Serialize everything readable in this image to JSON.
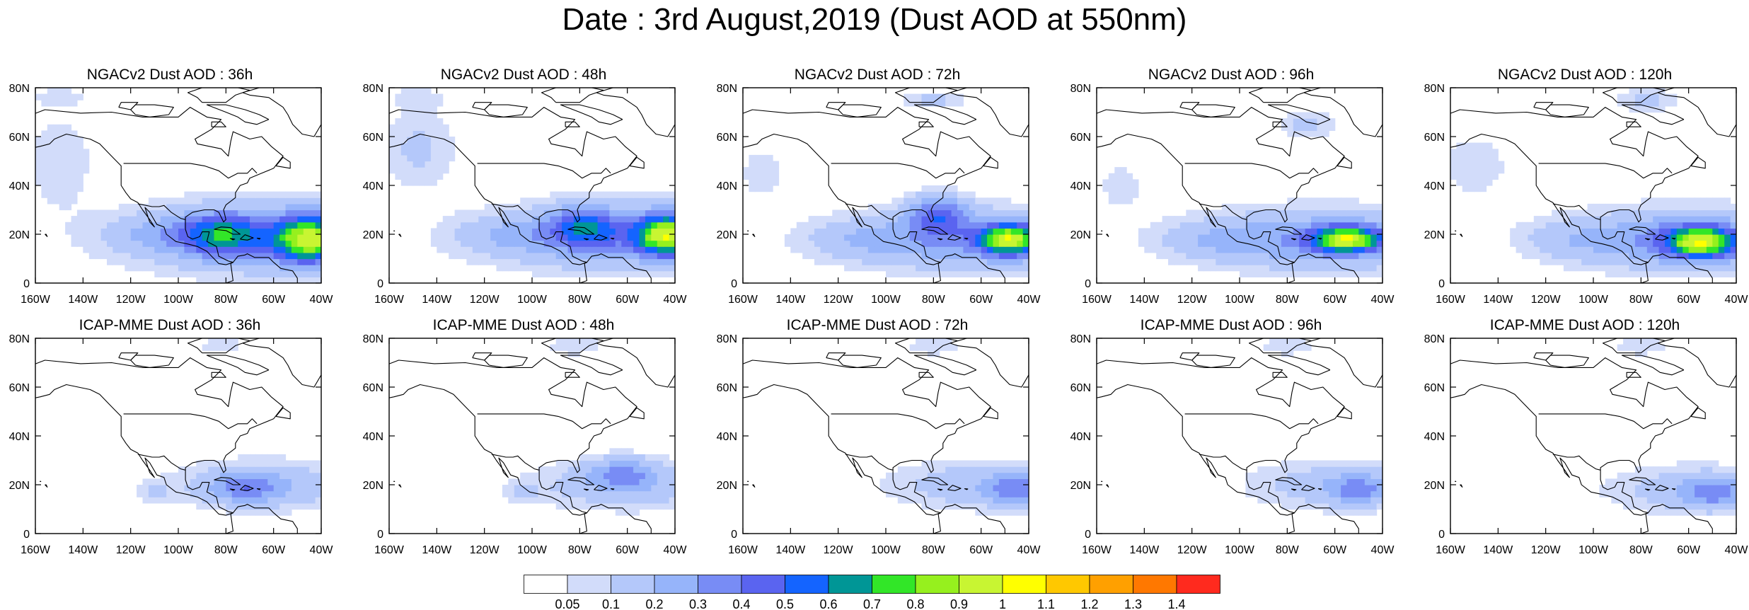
{
  "title": "Date : 3rd August,2019 (Dust AOD at 550nm)",
  "axes": {
    "lon_ticks": [
      "160W",
      "140W",
      "120W",
      "100W",
      "80W",
      "60W",
      "40W"
    ],
    "lat_ticks": [
      "0",
      "20N",
      "40N",
      "60N",
      "80N"
    ]
  },
  "panels": [
    {
      "row": 0,
      "col": 0,
      "title": "NGACv2 Dust AOD : 36h",
      "blobs": [
        [
          -60,
          19,
          60,
          14,
          0.32
        ],
        [
          -45,
          18,
          14,
          9,
          0.7
        ],
        [
          -82,
          20,
          16,
          8,
          0.45
        ],
        [
          -110,
          20,
          20,
          7,
          0.1
        ],
        [
          -150,
          50,
          14,
          18,
          0.1
        ],
        [
          -150,
          76,
          12,
          4,
          0.08
        ]
      ]
    },
    {
      "row": 0,
      "col": 1,
      "title": "NGACv2 Dust AOD : 48h",
      "blobs": [
        [
          -62,
          19,
          58,
          13,
          0.3
        ],
        [
          -44,
          20,
          12,
          8,
          0.75
        ],
        [
          -78,
          23,
          14,
          8,
          0.4
        ],
        [
          -110,
          20,
          20,
          7,
          0.1
        ],
        [
          -148,
          55,
          16,
          16,
          0.12
        ],
        [
          -148,
          76,
          12,
          4,
          0.08
        ]
      ]
    },
    {
      "row": 0,
      "col": 2,
      "title": "NGACv2 Dust AOD : 72h",
      "blobs": [
        [
          -65,
          18,
          55,
          12,
          0.3
        ],
        [
          -48,
          18,
          12,
          6,
          0.75
        ],
        [
          -78,
          28,
          12,
          8,
          0.35
        ],
        [
          -112,
          18,
          20,
          7,
          0.08
        ],
        [
          -152,
          45,
          10,
          12,
          0.08
        ],
        [
          -80,
          75,
          14,
          4,
          0.12
        ]
      ]
    },
    {
      "row": 0,
      "col": 3,
      "title": "NGACv2 Dust AOD : 96h",
      "blobs": [
        [
          -65,
          18,
          55,
          12,
          0.3
        ],
        [
          -55,
          18,
          14,
          5,
          0.75
        ],
        [
          -110,
          18,
          22,
          7,
          0.09
        ],
        [
          -150,
          40,
          10,
          10,
          0.08
        ],
        [
          -72,
          65,
          12,
          6,
          0.12
        ]
      ]
    },
    {
      "row": 0,
      "col": 4,
      "title": "NGACv2 Dust AOD : 120h",
      "blobs": [
        [
          -62,
          18,
          50,
          12,
          0.32
        ],
        [
          -55,
          17,
          14,
          6,
          0.75
        ],
        [
          -110,
          18,
          20,
          7,
          0.08
        ],
        [
          -150,
          48,
          14,
          12,
          0.1
        ],
        [
          -78,
          75,
          14,
          5,
          0.12
        ]
      ]
    },
    {
      "row": 1,
      "col": 0,
      "title": "ICAP-MME Dust AOD : 36h",
      "blobs": [
        [
          -62,
          20,
          40,
          10,
          0.18
        ],
        [
          -72,
          19,
          14,
          6,
          0.24
        ],
        [
          -110,
          17,
          8,
          4,
          0.08
        ],
        [
          -82,
          77,
          12,
          4,
          0.08
        ]
      ]
    },
    {
      "row": 1,
      "col": 1,
      "title": "ICAP-MME Dust AOD : 48h",
      "blobs": [
        [
          -60,
          20,
          40,
          10,
          0.18
        ],
        [
          -62,
          25,
          14,
          6,
          0.22
        ],
        [
          -105,
          17,
          8,
          4,
          0.08
        ],
        [
          -82,
          77,
          12,
          4,
          0.1
        ]
      ]
    },
    {
      "row": 1,
      "col": 2,
      "title": "ICAP-MME Dust AOD : 72h",
      "blobs": [
        [
          -60,
          20,
          38,
          10,
          0.17
        ],
        [
          -45,
          18,
          12,
          6,
          0.25
        ],
        [
          -80,
          77,
          12,
          4,
          0.1
        ]
      ]
    },
    {
      "row": 1,
      "col": 3,
      "title": "ICAP-MME Dust AOD : 96h",
      "blobs": [
        [
          -60,
          20,
          36,
          10,
          0.16
        ],
        [
          -50,
          18,
          12,
          6,
          0.24
        ],
        [
          -80,
          77,
          12,
          4,
          0.1
        ]
      ]
    },
    {
      "row": 1,
      "col": 4,
      "title": "ICAP-MME Dust AOD : 120h",
      "blobs": [
        [
          -58,
          18,
          36,
          10,
          0.16
        ],
        [
          -50,
          17,
          12,
          6,
          0.24
        ],
        [
          -80,
          77,
          12,
          4,
          0.1
        ]
      ]
    }
  ],
  "colorbar": {
    "labels": [
      "0.05",
      "0.1",
      "0.2",
      "0.3",
      "0.4",
      "0.5",
      "0.6",
      "0.7",
      "0.8",
      "0.9",
      "1",
      "1.1",
      "1.2",
      "1.3",
      "1.4"
    ],
    "thresholds": [
      0.05,
      0.1,
      0.2,
      0.3,
      0.4,
      0.5,
      0.6,
      0.7,
      0.8,
      0.9,
      1.0,
      1.1,
      1.2,
      1.3,
      1.4
    ],
    "colors": [
      "#ffffff",
      "#d2dcfa",
      "#b4c8fa",
      "#96b4fa",
      "#788cf5",
      "#5a64f0",
      "#1464ff",
      "#009696",
      "#32e628",
      "#96f01e",
      "#c8f532",
      "#ffff00",
      "#ffc800",
      "#ffa000",
      "#ff7800",
      "#ff2a1e"
    ]
  }
}
